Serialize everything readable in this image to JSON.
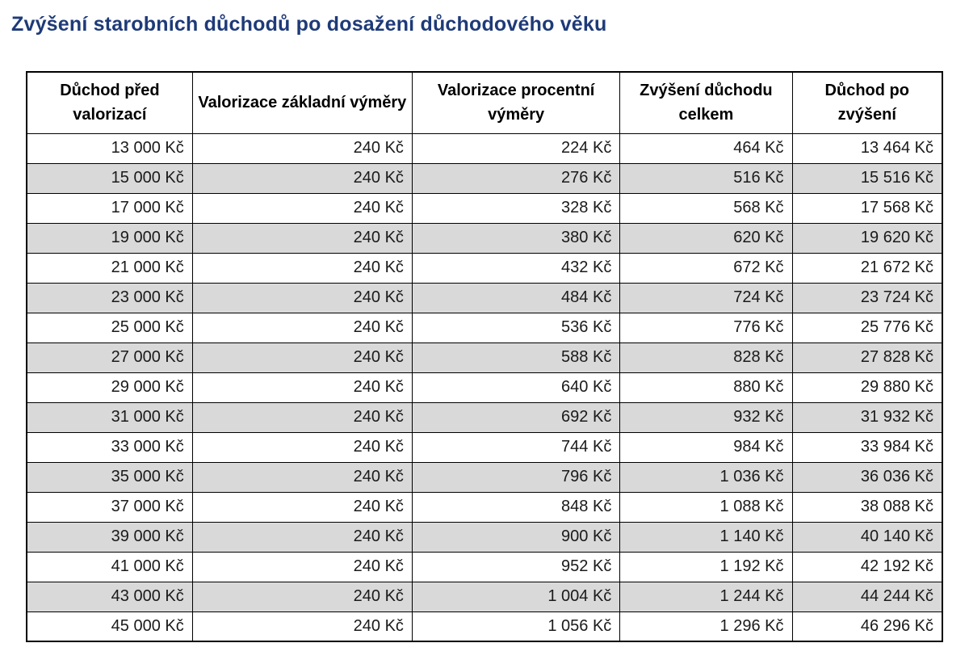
{
  "page": {
    "title": "Zvýšení starobních důchodů po dosažení důchodového věku"
  },
  "colors": {
    "title_text": "#1e3a78",
    "stripe_row": "#d9d9d9",
    "table_border": "#000000",
    "background": "#ffffff"
  },
  "table": {
    "columns": [
      "Důchod před valorizací",
      "Valorizace základní výměry",
      "Valorizace procentní výměry",
      "Zvýšení důchodu celkem",
      "Důchod po zvýšení"
    ],
    "rows": [
      [
        "13 000 Kč",
        "240 Kč",
        "224 Kč",
        "464 Kč",
        "13 464 Kč"
      ],
      [
        "15 000 Kč",
        "240 Kč",
        "276 Kč",
        "516 Kč",
        "15 516 Kč"
      ],
      [
        "17 000 Kč",
        "240 Kč",
        "328 Kč",
        "568 Kč",
        "17 568 Kč"
      ],
      [
        "19 000 Kč",
        "240 Kč",
        "380 Kč",
        "620 Kč",
        "19 620 Kč"
      ],
      [
        "21 000 Kč",
        "240 Kč",
        "432 Kč",
        "672 Kč",
        "21 672 Kč"
      ],
      [
        "23 000 Kč",
        "240 Kč",
        "484 Kč",
        "724 Kč",
        "23 724 Kč"
      ],
      [
        "25 000 Kč",
        "240 Kč",
        "536 Kč",
        "776 Kč",
        "25 776 Kč"
      ],
      [
        "27 000 Kč",
        "240 Kč",
        "588 Kč",
        "828 Kč",
        "27 828 Kč"
      ],
      [
        "29 000 Kč",
        "240 Kč",
        "640 Kč",
        "880 Kč",
        "29 880 Kč"
      ],
      [
        "31 000 Kč",
        "240 Kč",
        "692 Kč",
        "932 Kč",
        "31 932 Kč"
      ],
      [
        "33 000 Kč",
        "240 Kč",
        "744 Kč",
        "984 Kč",
        "33 984 Kč"
      ],
      [
        "35 000 Kč",
        "240 Kč",
        "796 Kč",
        "1 036 Kč",
        "36 036 Kč"
      ],
      [
        "37 000 Kč",
        "240 Kč",
        "848 Kč",
        "1 088 Kč",
        "38 088 Kč"
      ],
      [
        "39 000 Kč",
        "240 Kč",
        "900 Kč",
        "1 140 Kč",
        "40 140 Kč"
      ],
      [
        "41 000 Kč",
        "240 Kč",
        "952 Kč",
        "1 192 Kč",
        "42 192 Kč"
      ],
      [
        "43 000 Kč",
        "240 Kč",
        "1 004 Kč",
        "1 244 Kč",
        "44 244 Kč"
      ],
      [
        "45 000 Kč",
        "240 Kč",
        "1 056 Kč",
        "1 296 Kč",
        "46 296 Kč"
      ]
    ]
  }
}
